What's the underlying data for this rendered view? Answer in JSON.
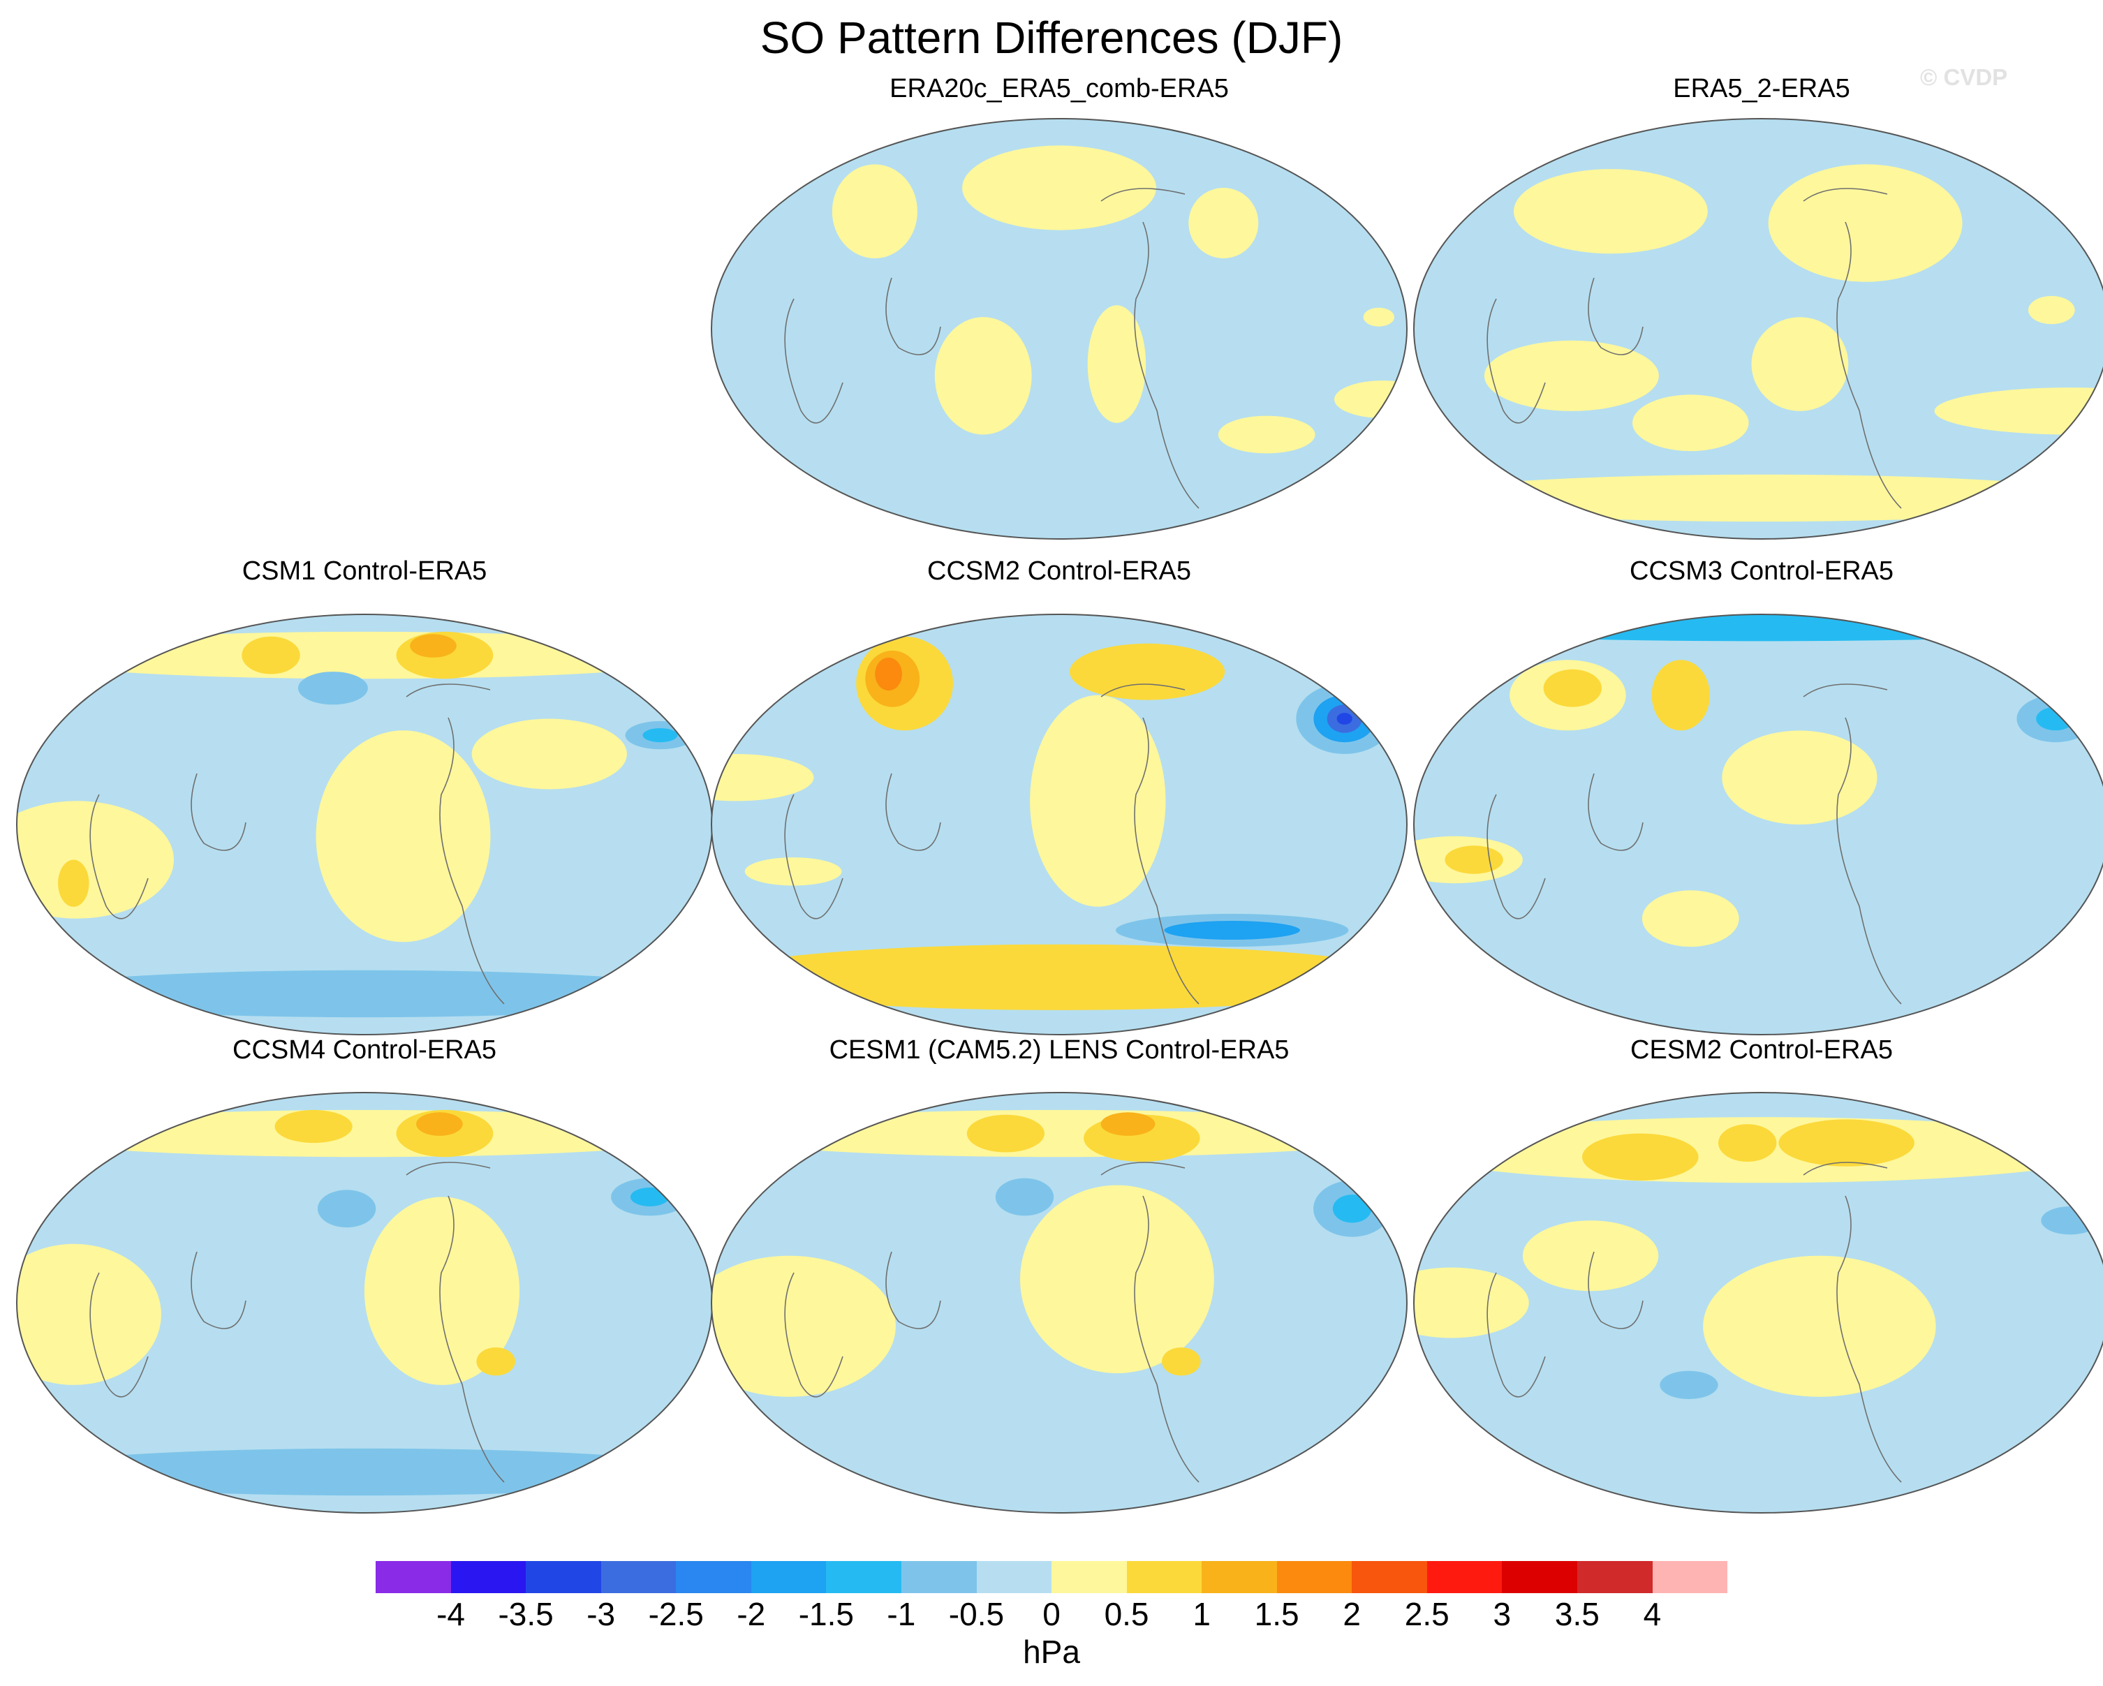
{
  "title": "SO Pattern Differences (DJF)",
  "credit": "© CVDP",
  "chart_data": {
    "type": "heatmap",
    "projection": "Winkel-tripel world maps, Pacific-centred",
    "units": "hPa",
    "colorbar": {
      "ticks": [
        "-4",
        "-3.5",
        "-3",
        "-2.5",
        "-2",
        "-1.5",
        "-1",
        "-0.5",
        "0",
        "0.5",
        "1",
        "1.5",
        "2",
        "2.5",
        "3",
        "3.5",
        "4"
      ],
      "colors": [
        "#8a2be8",
        "#2a16f0",
        "#2146e6",
        "#3c6de0",
        "#2a86f0",
        "#1ea2f2",
        "#25bbf2",
        "#7ec4ea",
        "#b6def0",
        "#fef79c",
        "#fbd93a",
        "#f9b21a",
        "#fb8a0e",
        "#f8550d",
        "#ff1a10",
        "#dc0000",
        "#d02a2a",
        "#ffb4b4"
      ]
    },
    "panels": [
      {
        "title": "ERA20c_ERA5_comb-ERA5",
        "features": [
          {
            "lon": 0,
            "lat": 60,
            "rx": 50,
            "ry": 18,
            "level": 0.5
          },
          {
            "lon": 95,
            "lat": 45,
            "rx": 18,
            "ry": 15,
            "level": 0.5
          },
          {
            "lon": -110,
            "lat": 50,
            "rx": 22,
            "ry": 20,
            "level": 0.5
          },
          {
            "lon": 165,
            "lat": 5,
            "rx": 8,
            "ry": 4,
            "level": 0.5
          },
          {
            "lon": 175,
            "lat": -30,
            "rx": 25,
            "ry": 8,
            "level": 0.5
          },
          {
            "lon": -40,
            "lat": -20,
            "rx": 25,
            "ry": 25,
            "level": 0.5
          },
          {
            "lon": 30,
            "lat": -15,
            "rx": 15,
            "ry": 25,
            "level": 0.5
          },
          {
            "lon": 120,
            "lat": -45,
            "rx": 25,
            "ry": 8,
            "level": 0.5
          }
        ]
      },
      {
        "title": "ERA5_2-ERA5",
        "features": [
          {
            "lon": 60,
            "lat": 45,
            "rx": 50,
            "ry": 25,
            "level": 0.5
          },
          {
            "lon": -90,
            "lat": 50,
            "rx": 50,
            "ry": 18,
            "level": 0.5
          },
          {
            "lon": 170,
            "lat": -35,
            "rx": 70,
            "ry": 10,
            "level": 0.5
          },
          {
            "lon": -100,
            "lat": -20,
            "rx": 45,
            "ry": 15,
            "level": 0.5
          },
          {
            "lon": 20,
            "lat": -15,
            "rx": 25,
            "ry": 20,
            "level": 0.5
          },
          {
            "lon": -40,
            "lat": -40,
            "rx": 30,
            "ry": 12,
            "level": 0.5
          },
          {
            "lon": 150,
            "lat": 8,
            "rx": 12,
            "ry": 6,
            "level": 0.5
          },
          {
            "lon": 0,
            "lat": -72,
            "rx": 180,
            "ry": 10,
            "level": 0.5
          }
        ]
      },
      {
        "title": "CSM1 Control-ERA5",
        "features": [
          {
            "lon": 20,
            "lat": -5,
            "rx": 45,
            "ry": 45,
            "level": 0.5
          },
          {
            "lon": -150,
            "lat": -15,
            "rx": 50,
            "ry": 25,
            "level": 0.5
          },
          {
            "lon": 100,
            "lat": 30,
            "rx": 40,
            "ry": 15,
            "level": 0.5
          },
          {
            "lon": 0,
            "lat": 72,
            "rx": 180,
            "ry": 10,
            "level": 0.5
          },
          {
            "lon": 60,
            "lat": 72,
            "rx": 25,
            "ry": 10,
            "level": 1
          },
          {
            "lon": 55,
            "lat": 76,
            "rx": 12,
            "ry": 5,
            "level": 1.5
          },
          {
            "lon": -70,
            "lat": 72,
            "rx": 15,
            "ry": 8,
            "level": 1
          },
          {
            "lon": -155,
            "lat": -25,
            "rx": 8,
            "ry": 10,
            "level": 1
          },
          {
            "lon": 165,
            "lat": 38,
            "rx": 18,
            "ry": 6,
            "level": -1
          },
          {
            "lon": 165,
            "lat": 38,
            "rx": 9,
            "ry": 3,
            "level": -1.5
          },
          {
            "lon": -20,
            "lat": 58,
            "rx": 18,
            "ry": 7,
            "level": -1
          },
          {
            "lon": 0,
            "lat": -72,
            "rx": 180,
            "ry": 10,
            "level": -1
          }
        ]
      },
      {
        "title": "CCSM2 Control-ERA5",
        "features": [
          {
            "lon": 20,
            "lat": 10,
            "rx": 35,
            "ry": 45,
            "level": 0.5
          },
          {
            "lon": -170,
            "lat": 20,
            "rx": 40,
            "ry": 10,
            "level": 0.5
          },
          {
            "lon": -140,
            "lat": -20,
            "rx": 25,
            "ry": 6,
            "level": 0.5
          },
          {
            "lon": 0,
            "lat": -65,
            "rx": 180,
            "ry": 14,
            "level": 1
          },
          {
            "lon": 60,
            "lat": 65,
            "rx": 40,
            "ry": 12,
            "level": 1
          },
          {
            "lon": -100,
            "lat": 60,
            "rx": 25,
            "ry": 20,
            "level": 1
          },
          {
            "lon": -110,
            "lat": 62,
            "rx": 14,
            "ry": 12,
            "level": 1.5
          },
          {
            "lon": -115,
            "lat": 64,
            "rx": 7,
            "ry": 7,
            "level": 2
          },
          {
            "lon": 165,
            "lat": 45,
            "rx": 25,
            "ry": 15,
            "level": -1
          },
          {
            "lon": 165,
            "lat": 45,
            "rx": 16,
            "ry": 10,
            "level": -2
          },
          {
            "lon": 165,
            "lat": 45,
            "rx": 9,
            "ry": 6,
            "level": -3
          },
          {
            "lon": 165,
            "lat": 45,
            "rx": 4,
            "ry": 2.5,
            "level": -3.5
          },
          {
            "lon": 100,
            "lat": -45,
            "rx": 60,
            "ry": 7,
            "level": -1
          },
          {
            "lon": 100,
            "lat": -45,
            "rx": 35,
            "ry": 4,
            "level": -2
          }
        ]
      },
      {
        "title": "CCSM3 Control-ERA5",
        "features": [
          {
            "lon": 20,
            "lat": 20,
            "rx": 40,
            "ry": 20,
            "level": 0.5
          },
          {
            "lon": -160,
            "lat": -15,
            "rx": 35,
            "ry": 10,
            "level": 0.5
          },
          {
            "lon": -40,
            "lat": -40,
            "rx": 25,
            "ry": 12,
            "level": 0.5
          },
          {
            "lon": -120,
            "lat": 55,
            "rx": 30,
            "ry": 15,
            "level": 0.5
          },
          {
            "lon": -120,
            "lat": 58,
            "rx": 15,
            "ry": 8,
            "level": 1
          },
          {
            "lon": -50,
            "lat": 55,
            "rx": 15,
            "ry": 15,
            "level": 1
          },
          {
            "lon": -150,
            "lat": -15,
            "rx": 15,
            "ry": 6,
            "level": 1
          },
          {
            "lon": 0,
            "lat": 84,
            "rx": 180,
            "ry": 6,
            "level": -1.5
          },
          {
            "lon": 170,
            "lat": 45,
            "rx": 20,
            "ry": 10,
            "level": -1
          },
          {
            "lon": 170,
            "lat": 45,
            "rx": 10,
            "ry": 5,
            "level": -1.5
          }
        ]
      },
      {
        "title": "CCSM4 Control-ERA5",
        "features": [
          {
            "lon": 40,
            "lat": 5,
            "rx": 40,
            "ry": 40,
            "level": 0.5
          },
          {
            "lon": -150,
            "lat": -5,
            "rx": 45,
            "ry": 30,
            "level": 0.5
          },
          {
            "lon": 0,
            "lat": 72,
            "rx": 180,
            "ry": 10,
            "level": 0.5
          },
          {
            "lon": 60,
            "lat": 72,
            "rx": 25,
            "ry": 10,
            "level": 1
          },
          {
            "lon": 60,
            "lat": 76,
            "rx": 12,
            "ry": 5,
            "level": 1.5
          },
          {
            "lon": -40,
            "lat": 75,
            "rx": 20,
            "ry": 7,
            "level": 1
          },
          {
            "lon": 70,
            "lat": -25,
            "rx": 10,
            "ry": 6,
            "level": 1
          },
          {
            "lon": 165,
            "lat": 45,
            "rx": 20,
            "ry": 8,
            "level": -1
          },
          {
            "lon": 165,
            "lat": 45,
            "rx": 10,
            "ry": 4,
            "level": -1.5
          },
          {
            "lon": -10,
            "lat": 40,
            "rx": 15,
            "ry": 8,
            "level": -1
          },
          {
            "lon": 0,
            "lat": -72,
            "rx": 180,
            "ry": 10,
            "level": -1
          }
        ]
      },
      {
        "title": "CESM1 (CAM5.2) LENS Control-ERA5",
        "features": [
          {
            "lon": 30,
            "lat": 10,
            "rx": 50,
            "ry": 40,
            "level": 0.5
          },
          {
            "lon": -140,
            "lat": -10,
            "rx": 55,
            "ry": 30,
            "level": 0.5
          },
          {
            "lon": 0,
            "lat": 72,
            "rx": 180,
            "ry": 10,
            "level": 0.5
          },
          {
            "lon": 60,
            "lat": 70,
            "rx": 30,
            "ry": 10,
            "level": 1
          },
          {
            "lon": 55,
            "lat": 76,
            "rx": 14,
            "ry": 5,
            "level": 1.5
          },
          {
            "lon": -40,
            "lat": 72,
            "rx": 20,
            "ry": 8,
            "level": 1
          },
          {
            "lon": 65,
            "lat": -25,
            "rx": 10,
            "ry": 6,
            "level": 1
          },
          {
            "lon": 165,
            "lat": 40,
            "rx": 20,
            "ry": 12,
            "level": -1
          },
          {
            "lon": 165,
            "lat": 40,
            "rx": 10,
            "ry": 6,
            "level": -1.5
          },
          {
            "lon": -20,
            "lat": 45,
            "rx": 15,
            "ry": 8,
            "level": -1
          }
        ]
      },
      {
        "title": "CESM2 Control-ERA5",
        "features": [
          {
            "lon": 30,
            "lat": -10,
            "rx": 60,
            "ry": 30,
            "level": 0.5
          },
          {
            "lon": -160,
            "lat": 0,
            "rx": 40,
            "ry": 15,
            "level": 0.5
          },
          {
            "lon": -90,
            "lat": 20,
            "rx": 35,
            "ry": 15,
            "level": 0.5
          },
          {
            "lon": 0,
            "lat": 65,
            "rx": 180,
            "ry": 14,
            "level": 0.5
          },
          {
            "lon": 60,
            "lat": 68,
            "rx": 35,
            "ry": 10,
            "level": 1
          },
          {
            "lon": -80,
            "lat": 62,
            "rx": 30,
            "ry": 10,
            "level": 1
          },
          {
            "lon": -10,
            "lat": 68,
            "rx": 15,
            "ry": 8,
            "level": 1
          },
          {
            "lon": 170,
            "lat": 35,
            "rx": 15,
            "ry": 6,
            "level": -1
          },
          {
            "lon": -40,
            "lat": -35,
            "rx": 15,
            "ry": 6,
            "level": -1
          }
        ]
      }
    ]
  }
}
